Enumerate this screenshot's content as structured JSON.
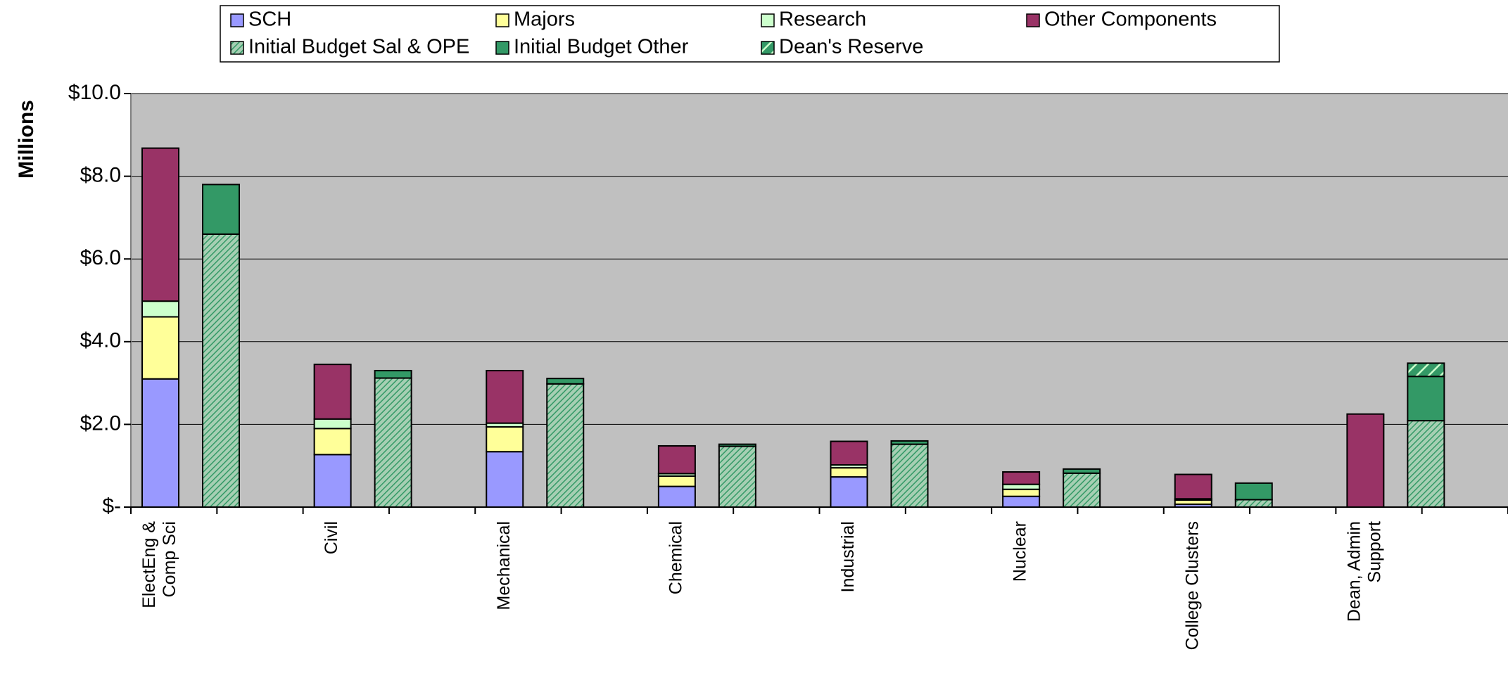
{
  "chart_data": {
    "type": "bar",
    "stacked": true,
    "title": "",
    "ylabel": "Millions",
    "xlabel": "",
    "ylim": [
      0,
      10
    ],
    "yticks": [
      {
        "value": 0,
        "label": "$-"
      },
      {
        "value": 2,
        "label": "$2.0"
      },
      {
        "value": 4,
        "label": "$4.0"
      },
      {
        "value": 6,
        "label": "$6.0"
      },
      {
        "value": 8,
        "label": "$8.0"
      },
      {
        "value": 10,
        "label": "$10.0"
      }
    ],
    "grid": true,
    "plot_background": "#c0c0c0",
    "legend_position": "top",
    "categories": [
      "ElectEng & Comp Sci",
      "Civil",
      "Mechanical",
      "Chemical",
      "Industrial",
      "Nuclear",
      "College Clusters",
      "Dean, Admin Support"
    ],
    "category_label_lines": [
      [
        "ElectEng &",
        "Comp Sci"
      ],
      [
        "Civil"
      ],
      [
        "Mechanical"
      ],
      [
        "Chemical"
      ],
      [
        "Industrial"
      ],
      [
        "Nuclear"
      ],
      [
        "College Clusters"
      ],
      [
        "Dean, Admin",
        "Support"
      ]
    ],
    "stacks": [
      {
        "position": "left",
        "series": [
          {
            "name": "SCH",
            "color": "#9999ff",
            "pattern": "solid",
            "values": [
              3.1,
              1.27,
              1.34,
              0.5,
              0.73,
              0.26,
              0.07,
              0
            ]
          },
          {
            "name": "Majors",
            "color": "#ffff99",
            "pattern": "solid",
            "values": [
              1.5,
              0.63,
              0.6,
              0.25,
              0.22,
              0.17,
              0.1,
              0
            ]
          },
          {
            "name": "Research",
            "color": "#ccffcc",
            "pattern": "solid",
            "values": [
              0.38,
              0.23,
              0.09,
              0.06,
              0.07,
              0.12,
              0.03,
              0
            ]
          },
          {
            "name": "Other Components",
            "color": "#993366",
            "pattern": "solid",
            "values": [
              3.7,
              1.32,
              1.27,
              0.67,
              0.57,
              0.3,
              0.59,
              2.25
            ]
          }
        ]
      },
      {
        "position": "right",
        "series": [
          {
            "name": "Initial Budget Sal & OPE",
            "color": "#339966",
            "pattern": "hatch",
            "values": [
              6.6,
              3.12,
              2.98,
              1.47,
              1.52,
              0.82,
              0.18,
              2.09
            ]
          },
          {
            "name": "Initial Budget Other",
            "color": "#339966",
            "pattern": "solid",
            "values": [
              1.2,
              0.18,
              0.13,
              0.05,
              0.08,
              0.1,
              0.4,
              1.07
            ]
          },
          {
            "name": "Dean's Reserve",
            "color": "#339966",
            "pattern": "hatch-wide",
            "values": [
              0,
              0,
              0,
              0,
              0,
              0,
              0,
              0.32
            ]
          }
        ]
      }
    ],
    "legend": [
      {
        "name": "SCH",
        "color": "#9999ff",
        "pattern": "solid"
      },
      {
        "name": "Majors",
        "color": "#ffff99",
        "pattern": "solid"
      },
      {
        "name": "Research",
        "color": "#ccffcc",
        "pattern": "solid"
      },
      {
        "name": "Other Components",
        "color": "#993366",
        "pattern": "solid"
      },
      {
        "name": "Initial Budget Sal & OPE",
        "color": "#339966",
        "pattern": "hatch"
      },
      {
        "name": "Initial Budget Other",
        "color": "#339966",
        "pattern": "solid"
      },
      {
        "name": "Dean's Reserve",
        "color": "#339966",
        "pattern": "hatch-wide"
      }
    ]
  }
}
